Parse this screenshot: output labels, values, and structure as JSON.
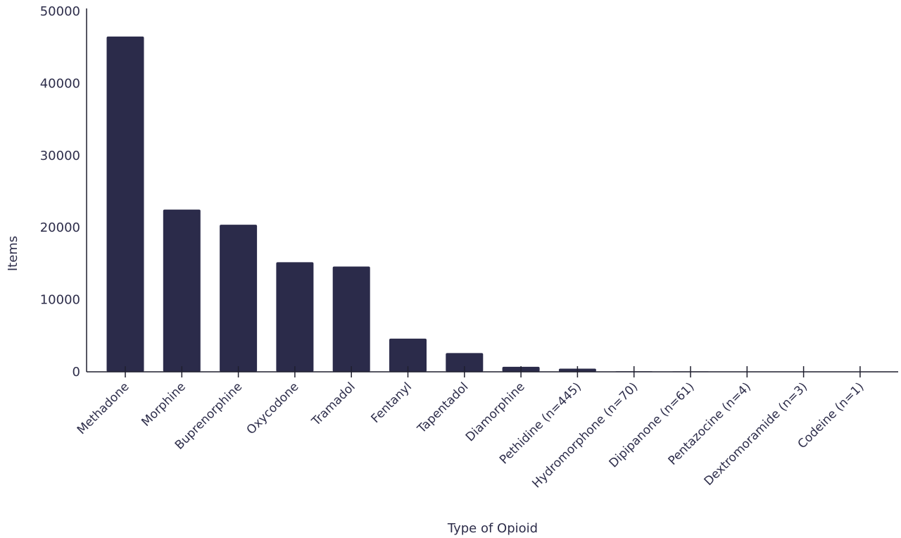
{
  "chart_data": {
    "type": "bar",
    "xlabel": "Type of Opioid",
    "ylabel": "Items",
    "ylim": [
      0,
      50000
    ],
    "yticks": [
      0,
      10000,
      20000,
      30000,
      40000,
      50000
    ],
    "grid": false,
    "categories": [
      "Methadone",
      "Morphine",
      "Buprenorphine",
      "Oxycodone",
      "Tramadol",
      "Fentanyl",
      "Tapentadol",
      "Diamorphine",
      "Pethidine (n=445)",
      "Hydromorphone (n=70)",
      "Dipipanone (n=61)",
      "Pentazocine (n=4)",
      "Dextromoramide (n=3)",
      "Codeine (n=1)"
    ],
    "values": [
      46500,
      22500,
      20400,
      15200,
      14600,
      4600,
      2600,
      700,
      445,
      70,
      61,
      4,
      3,
      1
    ],
    "bar_color": "#2b2b4a"
  }
}
